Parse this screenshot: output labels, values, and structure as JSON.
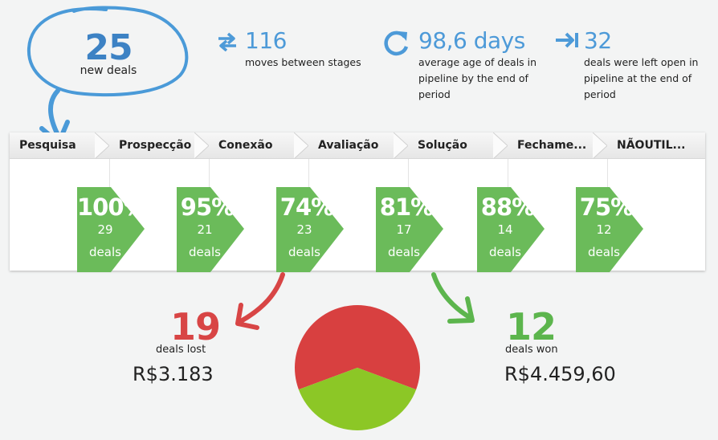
{
  "new_deals": {
    "count": "25",
    "label": "new deals"
  },
  "stats": [
    {
      "icon": "swap-arrows-icon",
      "value": "116",
      "label": "moves between stages"
    },
    {
      "icon": "refresh-cycle-icon",
      "value": "98,6 days",
      "label_lines": [
        "average age of deals in",
        "pipeline by the end of",
        "period"
      ]
    },
    {
      "icon": "arrow-right-bar-icon",
      "value": "32",
      "label_lines": [
        "deals were left open in",
        "pipeline at the end of",
        "period"
      ]
    }
  ],
  "stages": [
    {
      "name": "Pesquisa",
      "conversion": "100%",
      "deals": "29",
      "deals_label": "deals"
    },
    {
      "name": "Prospecção",
      "conversion": "95%",
      "deals": "21",
      "deals_label": "deals"
    },
    {
      "name": "Conexão",
      "conversion": "74%",
      "deals": "23",
      "deals_label": "deals"
    },
    {
      "name": "Avaliação",
      "conversion": "81%",
      "deals": "17",
      "deals_label": "deals"
    },
    {
      "name": "Solução",
      "conversion": "88%",
      "deals": "14",
      "deals_label": "deals"
    },
    {
      "name": "Fechame...",
      "conversion": "75%",
      "deals": "12",
      "deals_label": "deals"
    },
    {
      "name": "NÃOUTIL..."
    }
  ],
  "lost": {
    "count": "19",
    "label": "deals lost",
    "value": "R$3.183"
  },
  "won": {
    "count": "12",
    "label": "deals won",
    "value": "R$4.459,60"
  },
  "pie": {
    "lost_deals": 19,
    "won_deals": 12
  },
  "colors": {
    "accent_blue": "#3d82c4",
    "stat_blue": "#4d9ad8",
    "lost_red": "#d84545",
    "won_green": "#5cb54d",
    "conversion_green": "#6bbb5a",
    "pie_red": "#d84040",
    "pie_green": "#8cc726"
  }
}
